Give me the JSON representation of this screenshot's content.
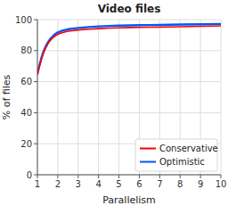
{
  "chart_data": {
    "type": "line",
    "title": "Video files",
    "x_label": "Parallelism",
    "y_label": "% of files",
    "x": [
      1.0,
      1.1,
      1.2,
      1.3,
      1.4,
      1.5,
      1.6,
      1.7,
      1.8,
      1.9,
      2.0,
      2.2,
      2.5,
      3.0,
      3.5,
      4.0,
      4.5,
      5.0,
      5.5,
      6.0,
      6.5,
      7.0,
      7.5,
      8.0,
      9.0,
      10.0
    ],
    "series": [
      {
        "name": "Conservative",
        "color": "#ff0000",
        "values": [
          65.0,
          70.0,
          74.5,
          78.5,
          81.5,
          84.0,
          86.0,
          87.5,
          88.8,
          89.8,
          90.5,
          91.5,
          92.5,
          93.3,
          93.8,
          94.2,
          94.5,
          94.7,
          94.9,
          95.0,
          95.1,
          95.2,
          95.3,
          95.4,
          95.7,
          96.0
        ]
      },
      {
        "name": "Optimistic",
        "color": "#0055ff",
        "values": [
          65.0,
          70.5,
          75.5,
          79.5,
          82.5,
          85.0,
          87.0,
          88.5,
          89.8,
          91.0,
          91.8,
          92.8,
          93.8,
          94.6,
          95.2,
          95.6,
          95.9,
          96.1,
          96.3,
          96.4,
          96.5,
          96.6,
          96.7,
          96.8,
          97.0,
          97.2
        ]
      }
    ],
    "xlim": [
      1,
      10
    ],
    "ylim": [
      0,
      100
    ],
    "xticks": [
      1,
      2,
      3,
      4,
      5,
      6,
      7,
      8,
      9,
      10
    ],
    "yticks": [
      0,
      20,
      40,
      60,
      80,
      100
    ],
    "grid": true,
    "legend": "lower right"
  }
}
